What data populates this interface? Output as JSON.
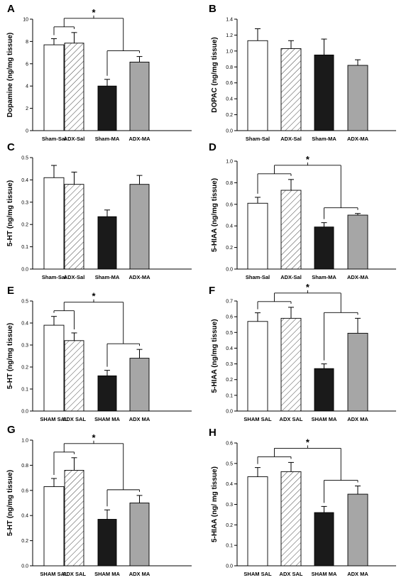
{
  "figure": {
    "width": 579,
    "height": 817
  },
  "hatch_color": "#333333",
  "colors": {
    "sham_sal": "#ffffff",
    "adx_sal": "hatched",
    "sham_ma": "#1a1a1a",
    "adx_ma": "#a6a6a6",
    "axis": "#000000"
  },
  "chart_data": [
    {
      "type": "bar",
      "panel": "A",
      "ylabel": "Dopamine (ng/mg tissue)",
      "categories": [
        "Sham-Sal",
        "ADX-Sal",
        "Sham-MA",
        "ADX-MA"
      ],
      "values": [
        7.7,
        7.85,
        4.0,
        6.15
      ],
      "errors": [
        0.55,
        0.95,
        0.6,
        0.5
      ],
      "ylim": [
        0,
        10
      ],
      "yticks": [
        0,
        2,
        4,
        6,
        8,
        10
      ],
      "tick_labels": [
        "0",
        "2",
        "4",
        "6",
        "8",
        "10"
      ],
      "significance": "*"
    },
    {
      "type": "bar",
      "panel": "B",
      "ylabel": "DOPAC (ng/mg tissue)",
      "categories": [
        "Sham-Sal",
        "ADX-Sal",
        "Sham-MA",
        "ADX-MA"
      ],
      "values": [
        1.13,
        1.03,
        0.95,
        0.82
      ],
      "errors": [
        0.15,
        0.1,
        0.2,
        0.07
      ],
      "ylim": [
        0,
        1.4
      ],
      "yticks": [
        0,
        0.2,
        0.4,
        0.6,
        0.8,
        1.0,
        1.2,
        1.4
      ],
      "tick_labels": [
        "0.0",
        "0.2",
        "0.4",
        "0.6",
        "0.8",
        "1.0",
        "1.2",
        "1.4"
      ],
      "significance": ""
    },
    {
      "type": "bar",
      "panel": "C",
      "ylabel": "5-HT (ng/mg tissue)",
      "categories": [
        "Sham-Sal",
        "ADX-Sal",
        "Sham-MA",
        "ADX-MA"
      ],
      "values": [
        0.41,
        0.38,
        0.235,
        0.38
      ],
      "errors": [
        0.055,
        0.055,
        0.03,
        0.04
      ],
      "ylim": [
        0,
        0.5
      ],
      "yticks": [
        0,
        0.1,
        0.2,
        0.3,
        0.4,
        0.5
      ],
      "tick_labels": [
        "0.0",
        "0.1",
        "0.2",
        "0.3",
        "0.4",
        "0.5"
      ],
      "significance": ""
    },
    {
      "type": "bar",
      "panel": "D",
      "ylabel": "5-HIAA (ng/mg tissue)",
      "categories": [
        "Sham-Sal",
        "ADX-Sal",
        "Sham-MA",
        "ADX-MA"
      ],
      "values": [
        0.61,
        0.73,
        0.39,
        0.5
      ],
      "errors": [
        0.055,
        0.1,
        0.04,
        0.015
      ],
      "ylim": [
        0,
        1.0
      ],
      "yticks": [
        0,
        0.2,
        0.4,
        0.6,
        0.8,
        1.0
      ],
      "tick_labels": [
        "0.0",
        "0.2",
        "0.4",
        "0.6",
        "0.8",
        "1.0"
      ],
      "significance": "*"
    },
    {
      "type": "bar",
      "panel": "E",
      "ylabel": "5-HT (ng/mg tissue)",
      "categories": [
        "SHAM SAL",
        "ADX SAL",
        "SHAM MA",
        "ADX MA"
      ],
      "values": [
        0.39,
        0.32,
        0.16,
        0.24
      ],
      "errors": [
        0.04,
        0.035,
        0.025,
        0.04
      ],
      "ylim": [
        0,
        0.5
      ],
      "yticks": [
        0,
        0.1,
        0.2,
        0.3,
        0.4,
        0.5
      ],
      "tick_labels": [
        "0.0",
        "0.1",
        "0.2",
        "0.3",
        "0.4",
        "0.5"
      ],
      "significance": "*"
    },
    {
      "type": "bar",
      "panel": "F",
      "ylabel": "5-HIAA (ng/mg tissue)",
      "categories": [
        "SHAM SAL",
        "ADX SAL",
        "SHAM MA",
        "ADX MA"
      ],
      "values": [
        0.57,
        0.59,
        0.27,
        0.495
      ],
      "errors": [
        0.055,
        0.07,
        0.03,
        0.095
      ],
      "ylim": [
        0,
        0.7
      ],
      "yticks": [
        0,
        0.1,
        0.2,
        0.3,
        0.4,
        0.5,
        0.6,
        0.7
      ],
      "tick_labels": [
        "0.0",
        "0.1",
        "0.2",
        "0.3",
        "0.4",
        "0.5",
        "0.6",
        "0.7"
      ],
      "significance": "*"
    },
    {
      "type": "bar",
      "panel": "G",
      "ylabel": "5-HT (ng/mg tissue)",
      "categories": [
        "SHAM SAL",
        "ADX SAL",
        "SHAM MA",
        "ADX MA"
      ],
      "values": [
        0.63,
        0.76,
        0.37,
        0.5
      ],
      "errors": [
        0.065,
        0.1,
        0.075,
        0.06
      ],
      "ylim": [
        0,
        1.0
      ],
      "yticks": [
        0,
        0.2,
        0.4,
        0.6,
        0.8,
        1.0
      ],
      "tick_labels": [
        "0.0",
        "0.2",
        "0.4",
        "0.6",
        "0.8",
        "1.0"
      ],
      "significance": "*"
    },
    {
      "type": "bar",
      "panel": "H",
      "ylabel": "5-HIAA (ng/ mg tissue)",
      "categories": [
        "SHAM SAL",
        "ADX SAL",
        "SHAM MA",
        "ADX MA"
      ],
      "values": [
        0.435,
        0.46,
        0.26,
        0.35
      ],
      "errors": [
        0.045,
        0.045,
        0.03,
        0.04
      ],
      "ylim": [
        0,
        0.6
      ],
      "yticks": [
        0,
        0.1,
        0.2,
        0.3,
        0.4,
        0.5,
        0.6
      ],
      "tick_labels": [
        "0.0",
        "0.1",
        "0.2",
        "0.3",
        "0.4",
        "0.5",
        "0.6"
      ],
      "significance": "*"
    }
  ]
}
